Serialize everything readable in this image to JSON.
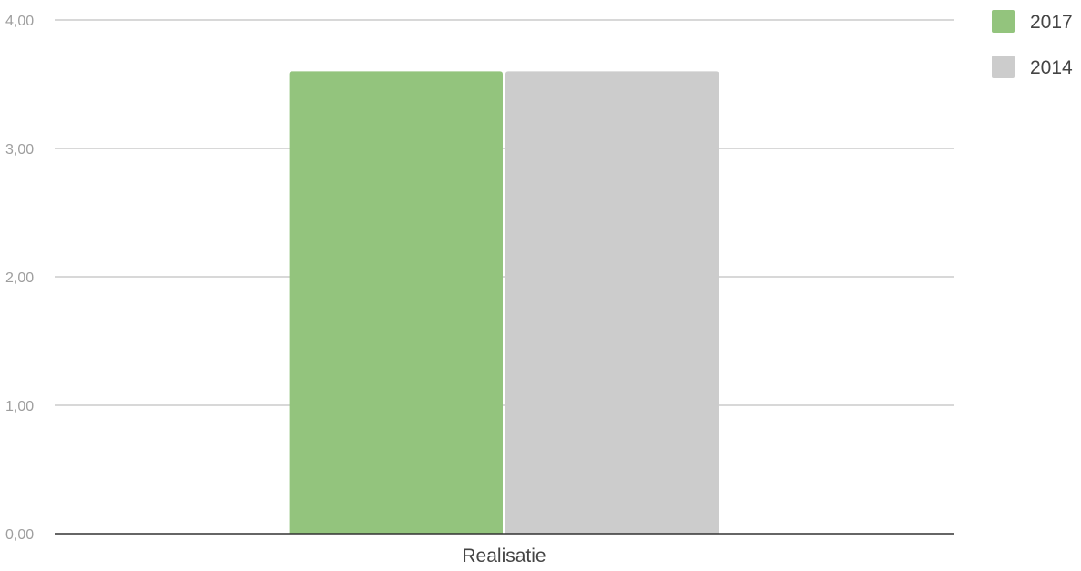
{
  "chart_data": {
    "type": "bar",
    "categories": [
      "Realisatie"
    ],
    "series": [
      {
        "name": "2017",
        "values": [
          3.6
        ],
        "color": "#93c47d"
      },
      {
        "name": "2014",
        "values": [
          3.6
        ],
        "color": "#cccccc"
      }
    ],
    "ylim": [
      0,
      4
    ],
    "y_ticks": [
      "0,00",
      "1,00",
      "2,00",
      "3,00",
      "4,00"
    ],
    "grid": true,
    "legend_position": "top-right",
    "title": "",
    "xlabel": "",
    "ylabel": ""
  }
}
